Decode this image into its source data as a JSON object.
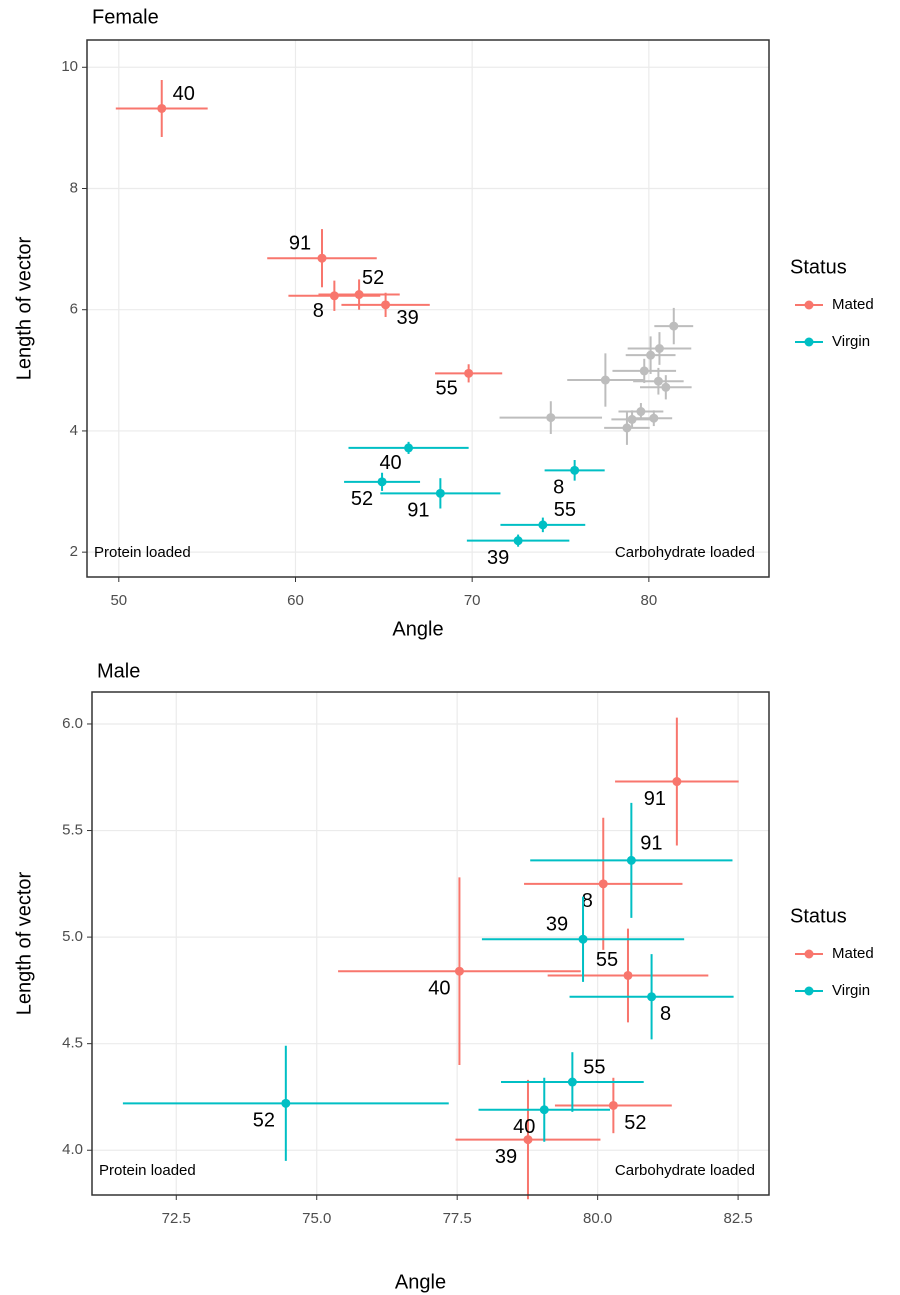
{
  "chart_data": [
    {
      "type": "scatter",
      "title": "Female",
      "x_label": "Angle",
      "y_label": "Length of vector",
      "xlim": [
        48.2,
        86.8
      ],
      "ylim": [
        1.59,
        10.45
      ],
      "xticks": [
        50,
        60,
        70,
        80
      ],
      "yticks": [
        2,
        4,
        6,
        8,
        10
      ],
      "grid": true,
      "annotations": [
        "Protein loaded",
        "Carbohydrate loaded"
      ],
      "legend_title": "Status",
      "series": [
        {
          "color": "#bdbdbd",
          "x": [
            81.41,
            80.1,
            77.54,
            80.54,
            80.28,
            78.76,
            80.6,
            79.74,
            80.96,
            79.55,
            79.05,
            74.45
          ],
          "values": [
            5.73,
            5.25,
            4.84,
            4.82,
            4.21,
            4.05,
            5.36,
            4.99,
            4.72,
            4.32,
            4.19,
            4.22
          ],
          "x_err": [
            1.1,
            1.41,
            2.16,
            1.43,
            1.04,
            1.29,
            1.8,
            1.8,
            1.46,
            1.27,
            1.17,
            2.9
          ],
          "y_err": [
            0.3,
            0.31,
            0.44,
            0.22,
            0.13,
            0.28,
            0.27,
            0.2,
            0.2,
            0.14,
            0.15,
            0.27
          ]
        },
        {
          "name": "Mated",
          "color": "#F8766D",
          "labels": [
            "40",
            "91",
            "52",
            "8",
            "39",
            "55"
          ],
          "x": [
            52.43,
            61.5,
            63.6,
            62.2,
            65.1,
            69.8
          ],
          "values": [
            9.32,
            6.85,
            6.25,
            6.23,
            6.08,
            4.95
          ],
          "x_err": [
            2.6,
            3.1,
            2.3,
            2.6,
            2.5,
            1.9
          ],
          "y_err": [
            0.47,
            0.48,
            0.25,
            0.25,
            0.2,
            0.15
          ]
        },
        {
          "name": "Virgin",
          "color": "#00BFC4",
          "labels": [
            "40",
            "52",
            "91",
            "8",
            "55",
            "39"
          ],
          "x": [
            66.4,
            64.9,
            68.2,
            75.8,
            74.0,
            72.6
          ],
          "values": [
            3.72,
            3.16,
            2.97,
            3.35,
            2.45,
            2.19
          ],
          "x_err": [
            3.4,
            2.15,
            3.4,
            1.7,
            2.4,
            2.9
          ],
          "y_err": [
            0.1,
            0.15,
            0.25,
            0.17,
            0.12,
            0.1
          ]
        }
      ]
    },
    {
      "type": "scatter",
      "title": "Male",
      "x_label": "Angle",
      "y_label": "Length of vector",
      "xlim": [
        71.0,
        83.05
      ],
      "ylim": [
        3.79,
        6.15
      ],
      "xticks": [
        72.5,
        {
          "value": 75,
          "label": "75.0"
        },
        77.5,
        {
          "value": 80,
          "label": "80.0"
        },
        82.5
      ],
      "yticks": [
        {
          "value": 4,
          "label": "4.0"
        },
        4.5,
        {
          "value": 5,
          "label": "5.0"
        },
        5.5,
        {
          "value": 6,
          "label": "6.0"
        }
      ],
      "grid": true,
      "annotations": [
        "Protein loaded",
        "Carbohydrate loaded"
      ],
      "legend_title": "Status",
      "series": [
        {
          "name": "Mated",
          "color": "#F8766D",
          "labels": [
            "91",
            "8",
            "40",
            "55",
            "52",
            "39"
          ],
          "x": [
            81.41,
            80.1,
            77.54,
            80.54,
            80.28,
            78.76
          ],
          "values": [
            5.73,
            5.25,
            4.84,
            4.82,
            4.21,
            4.05
          ],
          "x_err": [
            1.1,
            1.41,
            2.16,
            1.43,
            1.04,
            1.29
          ],
          "y_err": [
            0.3,
            0.31,
            0.44,
            0.22,
            0.13,
            0.28
          ]
        },
        {
          "name": "Virgin",
          "color": "#00BFC4",
          "labels": [
            "91",
            "39",
            "8",
            "55",
            "40",
            "52"
          ],
          "x": [
            80.6,
            79.74,
            80.96,
            79.55,
            79.05,
            74.45
          ],
          "values": [
            5.36,
            4.99,
            4.72,
            4.32,
            4.19,
            4.22
          ],
          "x_err": [
            1.8,
            1.8,
            1.46,
            1.27,
            1.17,
            2.9
          ],
          "y_err": [
            0.27,
            0.2,
            0.2,
            0.14,
            0.15,
            0.27
          ]
        }
      ]
    }
  ]
}
